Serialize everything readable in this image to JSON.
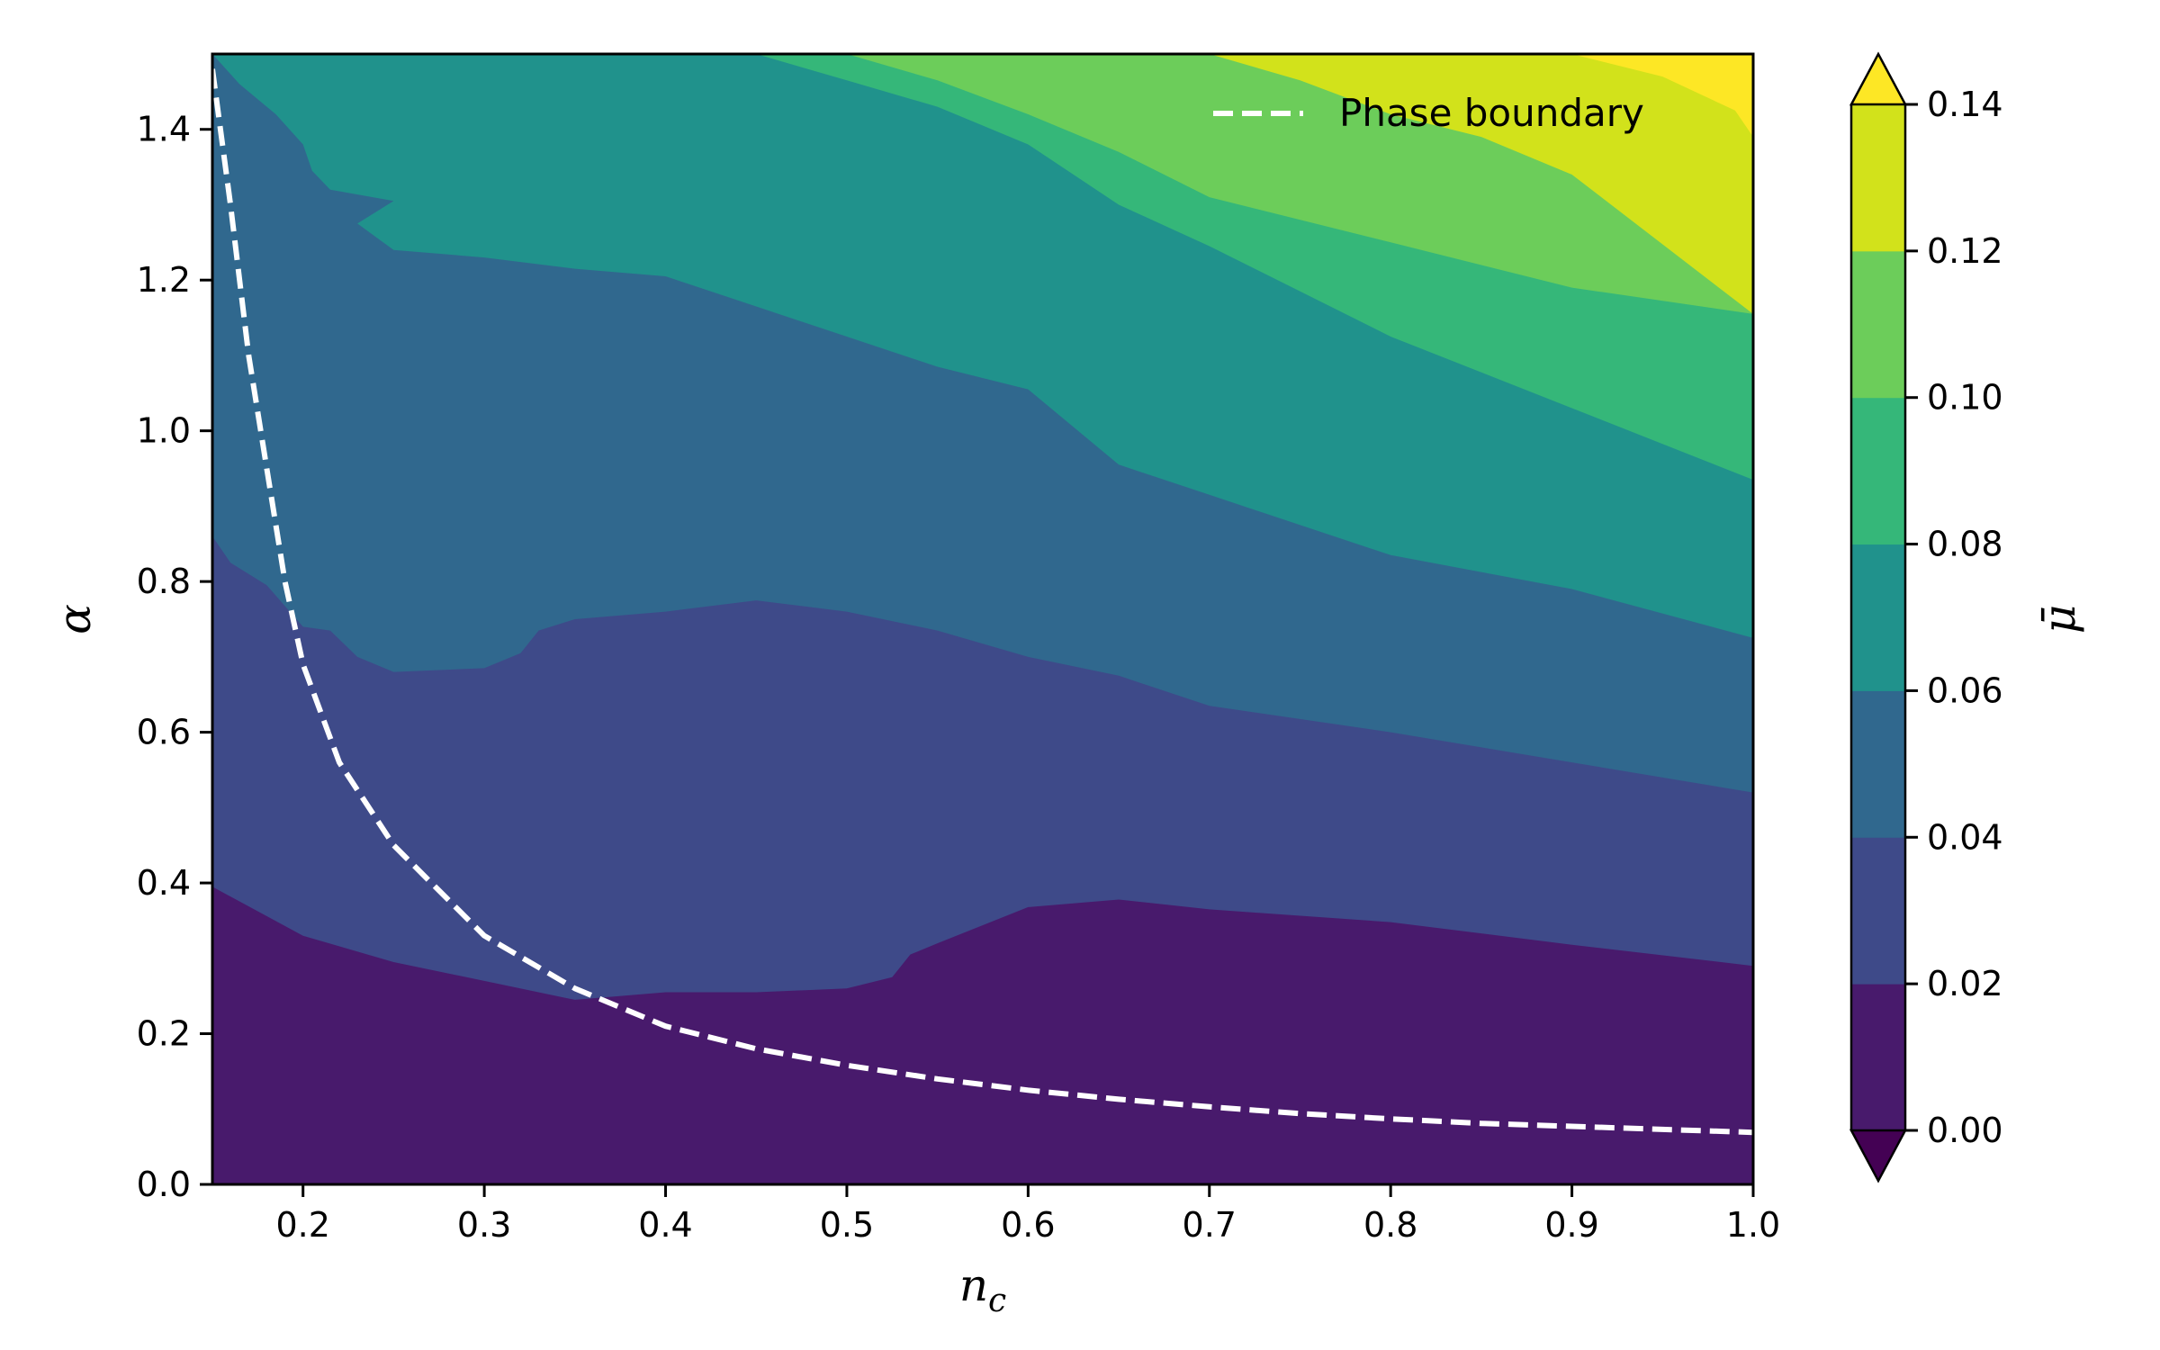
{
  "chart_data": {
    "type": "contour",
    "x_label": "n_c",
    "y_label": "α",
    "colorbar_label": "μ̄",
    "x_range": [
      0.15,
      1.0
    ],
    "y_range": [
      0.0,
      1.5
    ],
    "x_ticks": [
      "0.2",
      "0.3",
      "0.4",
      "0.5",
      "0.6",
      "0.7",
      "0.8",
      "0.9",
      "1.0"
    ],
    "y_ticks": [
      "0.0",
      "0.2",
      "0.4",
      "0.6",
      "0.8",
      "1.0",
      "1.2",
      "1.4"
    ],
    "colorbar_ticks": [
      "0.00",
      "0.02",
      "0.04",
      "0.06",
      "0.08",
      "0.10",
      "0.12",
      "0.14"
    ],
    "levels": [
      0.0,
      0.02,
      0.04,
      0.06,
      0.08,
      0.1,
      0.12,
      0.14
    ],
    "extend": "both",
    "colormap": "viridis",
    "level_colors": [
      "#481a6c",
      "#3e4a89",
      "#30688e",
      "#20928c",
      "#35b779",
      "#6ccd5a",
      "#d2e21b",
      "#fde725"
    ],
    "under_color": "#440154",
    "grid": false,
    "legend_position": "top-right",
    "contour_boundaries": [
      {
        "level": 0.02,
        "points": [
          [
            0.15,
            0.395
          ],
          [
            0.2,
            0.33
          ],
          [
            0.25,
            0.295
          ],
          [
            0.3,
            0.27
          ],
          [
            0.35,
            0.245
          ],
          [
            0.4,
            0.255
          ],
          [
            0.45,
            0.255
          ],
          [
            0.5,
            0.26
          ],
          [
            0.525,
            0.275
          ],
          [
            0.535,
            0.305
          ],
          [
            0.55,
            0.32
          ],
          [
            0.6,
            0.368
          ],
          [
            0.65,
            0.378
          ],
          [
            0.7,
            0.365
          ],
          [
            0.8,
            0.348
          ],
          [
            0.9,
            0.318
          ],
          [
            1.0,
            0.29
          ]
        ]
      },
      {
        "level": 0.04,
        "points": [
          [
            0.15,
            0.86
          ],
          [
            0.16,
            0.825
          ],
          [
            0.18,
            0.795
          ],
          [
            0.2,
            0.74
          ],
          [
            0.215,
            0.735
          ],
          [
            0.23,
            0.7
          ],
          [
            0.25,
            0.68
          ],
          [
            0.3,
            0.685
          ],
          [
            0.32,
            0.705
          ],
          [
            0.33,
            0.735
          ],
          [
            0.35,
            0.75
          ],
          [
            0.4,
            0.76
          ],
          [
            0.45,
            0.775
          ],
          [
            0.5,
            0.76
          ],
          [
            0.55,
            0.735
          ],
          [
            0.6,
            0.7
          ],
          [
            0.65,
            0.675
          ],
          [
            0.7,
            0.635
          ],
          [
            0.8,
            0.6
          ],
          [
            0.9,
            0.56
          ],
          [
            1.0,
            0.52
          ]
        ]
      },
      {
        "level": 0.06,
        "points": [
          [
            0.15,
            1.5
          ],
          [
            0.165,
            1.46
          ],
          [
            0.185,
            1.42
          ],
          [
            0.2,
            1.38
          ],
          [
            0.205,
            1.345
          ],
          [
            0.215,
            1.32
          ],
          [
            0.25,
            1.305
          ],
          [
            0.23,
            1.275
          ],
          [
            0.25,
            1.24
          ],
          [
            0.3,
            1.23
          ],
          [
            0.35,
            1.215
          ],
          [
            0.4,
            1.205
          ],
          [
            0.45,
            1.165
          ],
          [
            0.5,
            1.125
          ],
          [
            0.55,
            1.085
          ],
          [
            0.6,
            1.055
          ],
          [
            0.65,
            0.955
          ],
          [
            0.7,
            0.915
          ],
          [
            0.8,
            0.835
          ],
          [
            0.9,
            0.79
          ],
          [
            1.0,
            0.725
          ]
        ]
      },
      {
        "level": 0.08,
        "points": [
          [
            0.175,
            1.5
          ],
          [
            0.3,
            1.5
          ],
          [
            0.45,
            1.5
          ],
          [
            0.5,
            1.465
          ],
          [
            0.55,
            1.43
          ],
          [
            0.6,
            1.38
          ],
          [
            0.65,
            1.3
          ],
          [
            0.7,
            1.245
          ],
          [
            0.8,
            1.125
          ],
          [
            0.9,
            1.03
          ],
          [
            1.0,
            0.935
          ]
        ]
      },
      {
        "level": 0.1,
        "points": [
          [
            0.5,
            1.5
          ],
          [
            0.55,
            1.465
          ],
          [
            0.6,
            1.42
          ],
          [
            0.65,
            1.37
          ],
          [
            0.7,
            1.31
          ],
          [
            0.8,
            1.25
          ],
          [
            0.9,
            1.19
          ],
          [
            1.0,
            1.155
          ]
        ]
      },
      {
        "level": 0.12,
        "points": [
          [
            0.7,
            1.5
          ],
          [
            0.75,
            1.465
          ],
          [
            0.8,
            1.42
          ],
          [
            0.85,
            1.39
          ],
          [
            0.9,
            1.34
          ],
          [
            1.0,
            1.155
          ]
        ]
      },
      {
        "level": 0.14,
        "points": [
          [
            0.9,
            1.5
          ],
          [
            0.95,
            1.47
          ],
          [
            0.99,
            1.425
          ],
          [
            1.0,
            1.39
          ]
        ]
      }
    ],
    "series": [
      {
        "name": "Phase boundary",
        "style": "dashed",
        "color": "#ffffff",
        "x": [
          0.15,
          0.16,
          0.17,
          0.18,
          0.19,
          0.2,
          0.22,
          0.25,
          0.3,
          0.35,
          0.4,
          0.45,
          0.5,
          0.55,
          0.6,
          0.65,
          0.7,
          0.75,
          0.8,
          0.85,
          0.9,
          0.95,
          1.0
        ],
        "y": [
          1.48,
          1.3,
          1.1,
          0.95,
          0.8,
          0.69,
          0.56,
          0.45,
          0.33,
          0.26,
          0.21,
          0.18,
          0.158,
          0.14,
          0.125,
          0.113,
          0.103,
          0.094,
          0.087,
          0.081,
          0.077,
          0.073,
          0.069
        ]
      }
    ]
  }
}
